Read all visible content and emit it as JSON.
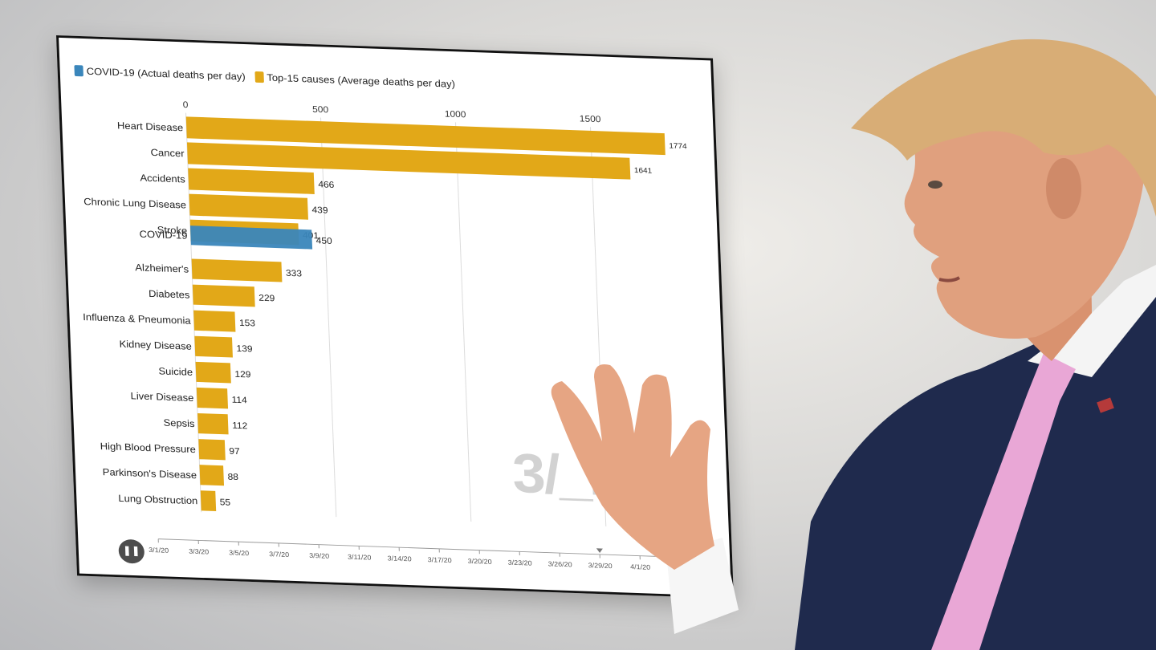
{
  "legend": {
    "covid_label": "COVID-19 (Actual deaths per day)",
    "top15_label": "Top-15 causes (Average deaths per day)"
  },
  "colors": {
    "covid": "#3a86bb",
    "top15": "#e2a818",
    "grid": "#dcdcdc"
  },
  "date_watermark": "3/_20",
  "play_icon": "pause-icon",
  "play_glyph": "❚❚",
  "chart_data": {
    "type": "bar",
    "orientation": "horizontal",
    "x_ticks": [
      0,
      500,
      1000,
      1500
    ],
    "xlim": [
      0,
      1600
    ],
    "bars": [
      {
        "label": "Heart Disease",
        "value": 1774,
        "value_label": "1774",
        "group": "top15"
      },
      {
        "label": "Cancer",
        "value": 1641,
        "value_label": "1641",
        "group": "top15"
      },
      {
        "label": "Accidents",
        "value": 466,
        "value_label": "466",
        "group": "top15"
      },
      {
        "label": "Chronic Lung Disease",
        "value": 439,
        "value_label": "439",
        "group": "top15"
      },
      {
        "label": "Stroke",
        "value": 401,
        "value_label": "401",
        "group": "top15"
      },
      {
        "label": "COVID-19",
        "value": 450,
        "value_label": "450",
        "group": "covid"
      },
      {
        "label": "Alzheimer's",
        "value": 333,
        "value_label": "333",
        "group": "top15"
      },
      {
        "label": "Diabetes",
        "value": 229,
        "value_label": "229",
        "group": "top15"
      },
      {
        "label": "Influenza & Pneumonia",
        "value": 153,
        "value_label": "153",
        "group": "top15"
      },
      {
        "label": "Kidney Disease",
        "value": 139,
        "value_label": "139",
        "group": "top15"
      },
      {
        "label": "Suicide",
        "value": 129,
        "value_label": "129",
        "group": "top15"
      },
      {
        "label": "Liver Disease",
        "value": 114,
        "value_label": "114",
        "group": "top15"
      },
      {
        "label": "Sepsis",
        "value": 112,
        "value_label": "112",
        "group": "top15"
      },
      {
        "label": "High Blood Pressure",
        "value": 97,
        "value_label": "97",
        "group": "top15"
      },
      {
        "label": "Parkinson's Disease",
        "value": 88,
        "value_label": "88",
        "group": "top15"
      },
      {
        "label": "Lung Obstruction",
        "value": 55,
        "value_label": "55",
        "group": "top15"
      }
    ],
    "timeline_dates": [
      "3/1/20",
      "3/3/20",
      "3/5/20",
      "3/7/20",
      "3/9/20",
      "3/11/20",
      "3/14/20",
      "3/17/20",
      "3/20/20",
      "3/23/20",
      "3/26/20",
      "3/29/20",
      "4/1/20"
    ]
  }
}
